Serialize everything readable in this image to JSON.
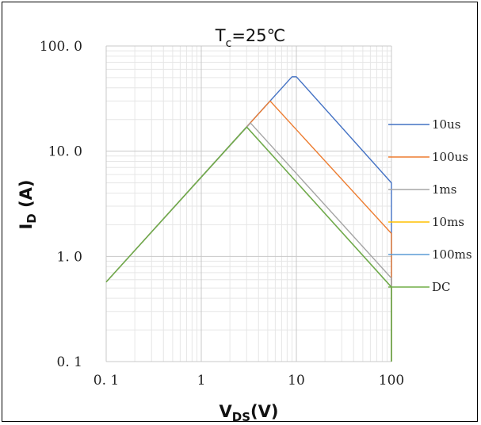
{
  "chart_data": {
    "type": "line",
    "title": "T",
    "title_sub": "c",
    "title_rest": "=25℃",
    "xlabel": "V",
    "xlabel_sub": "DS",
    "xlabel_rest": "(V)",
    "ylabel": "I",
    "ylabel_sub": "D",
    "ylabel_rest": " (A)",
    "x_scale": "log",
    "y_scale": "log",
    "xlim": [
      0.1,
      100
    ],
    "ylim": [
      0.1,
      100
    ],
    "x_ticks": [
      0.1,
      1,
      10,
      100
    ],
    "x_tick_labels": [
      "0. 1",
      "1",
      "10",
      "100"
    ],
    "y_ticks": [
      0.1,
      1,
      10,
      100
    ],
    "y_tick_labels": [
      "0. 1",
      "1. 0",
      "10. 0",
      "100. 0"
    ],
    "grid": true,
    "legend_position": "right",
    "series": [
      {
        "name": "10us",
        "color": "#4472C4",
        "x": [
          0.1,
          9,
          10,
          100,
          100
        ],
        "y": [
          0.57,
          51,
          51,
          5.0,
          0.1
        ]
      },
      {
        "name": "100us",
        "color": "#ED7D31",
        "x": [
          0.1,
          5.3,
          100,
          100
        ],
        "y": [
          0.57,
          30,
          1.65,
          0.1
        ]
      },
      {
        "name": "1ms",
        "color": "#A5A5A5",
        "x": [
          0.1,
          3.3,
          100,
          100
        ],
        "y": [
          0.57,
          18.5,
          0.62,
          0.1
        ]
      },
      {
        "name": "10ms",
        "color": "#FFC000",
        "x": [
          0.1,
          3.0,
          100,
          100
        ],
        "y": [
          0.57,
          17,
          0.51,
          0.1
        ]
      },
      {
        "name": "100ms",
        "color": "#5B9BD5",
        "x": [
          0.1,
          3.0,
          100,
          100
        ],
        "y": [
          0.57,
          17,
          0.51,
          0.1
        ]
      },
      {
        "name": "DC",
        "color": "#70AD47",
        "x": [
          0.1,
          3.0,
          100,
          100
        ],
        "y": [
          0.57,
          17,
          0.51,
          0.1
        ]
      }
    ]
  }
}
